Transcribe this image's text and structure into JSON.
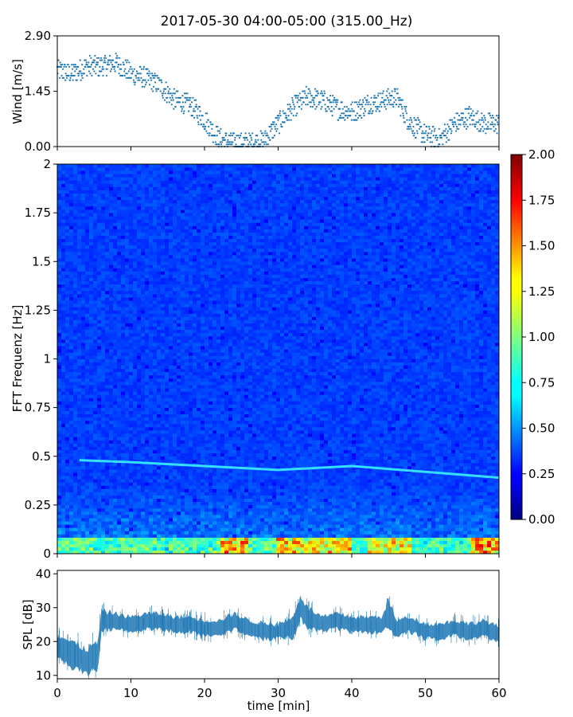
{
  "figure": {
    "title": "2017-05-30 04:00-05:00 (315.00_Hz)"
  },
  "chart_data": [
    {
      "type": "scatter",
      "panel": "wind",
      "ylabel": "Wind [m/s]",
      "xlim": [
        0,
        60
      ],
      "ylim": [
        0,
        2.9
      ],
      "yticks": [
        0,
        1.45,
        2.9
      ],
      "ytick_labels": [
        "0.00",
        "1.45",
        "2.90"
      ],
      "color": "#1f77b4",
      "series": [
        {
          "name": "wind",
          "x": [
            0,
            2,
            4,
            6,
            8,
            10,
            12,
            14,
            16,
            18,
            20,
            22,
            24,
            26,
            28,
            30,
            32,
            34,
            36,
            38,
            40,
            42,
            44,
            46,
            48,
            50,
            52,
            54,
            56,
            58,
            60
          ],
          "y": [
            2.0,
            1.9,
            2.1,
            2.1,
            2.2,
            1.9,
            1.8,
            1.6,
            1.2,
            1.1,
            0.7,
            0.2,
            0.1,
            0.1,
            0.15,
            0.6,
            1.0,
            1.3,
            1.2,
            1.0,
            0.9,
            1.1,
            1.2,
            1.3,
            0.6,
            0.3,
            0.2,
            0.6,
            0.8,
            0.6,
            0.6
          ]
        }
      ]
    },
    {
      "type": "heatmap",
      "panel": "spectrogram",
      "ylabel": "FFT Frequenz [Hz]",
      "xlim": [
        0,
        60
      ],
      "ylim": [
        0,
        2
      ],
      "yticks": [
        0,
        0.25,
        0.5,
        0.75,
        1,
        1.25,
        1.5,
        1.75,
        2
      ],
      "ytick_labels": [
        "0",
        "0.25",
        "0.5",
        "0.75",
        "1",
        "1.25",
        "1.5",
        "1.75",
        "2"
      ],
      "colormap": "jet",
      "colorbar": {
        "vmin": 0,
        "vmax": 2,
        "ticks": [
          0,
          0.25,
          0.5,
          0.75,
          1.0,
          1.25,
          1.5,
          1.75,
          2.0
        ],
        "tick_labels": [
          "0.00",
          "0.25",
          "0.50",
          "0.75",
          "1.00",
          "1.25",
          "1.50",
          "1.75",
          "2.00"
        ]
      },
      "tonal_line": {
        "x": [
          3,
          10,
          20,
          30,
          40,
          50,
          60
        ],
        "freq": [
          0.48,
          0.47,
          0.45,
          0.43,
          0.45,
          0.42,
          0.39
        ]
      },
      "low_freq_bursts": [
        {
          "x0": 22,
          "x1": 26,
          "level": 1.2
        },
        {
          "x0": 30,
          "x1": 40,
          "level": 1.1
        },
        {
          "x0": 42,
          "x1": 48,
          "level": 1.0
        },
        {
          "x0": 56,
          "x1": 60,
          "level": 1.3
        }
      ]
    },
    {
      "type": "area",
      "panel": "spl",
      "xlabel": "time [min]",
      "ylabel": "SPL [dB]",
      "xlim": [
        0,
        60
      ],
      "ylim": [
        9,
        41
      ],
      "xticks": [
        0,
        10,
        20,
        30,
        40,
        50,
        60
      ],
      "xtick_labels": [
        "0",
        "10",
        "20",
        "30",
        "40",
        "50",
        "60"
      ],
      "yticks": [
        10,
        20,
        30,
        40
      ],
      "ytick_labels": [
        "10",
        "20",
        "30",
        "40"
      ],
      "color": "#1f77b4",
      "series": [
        {
          "name": "spl",
          "x": [
            0,
            2,
            4,
            5.5,
            6,
            8,
            10,
            12,
            14,
            16,
            18,
            20,
            22,
            24,
            26,
            28,
            30,
            32,
            33,
            34,
            36,
            38,
            40,
            42,
            44,
            45,
            46,
            48,
            50,
            52,
            54,
            56,
            58,
            60
          ],
          "y": [
            19,
            16,
            14,
            16,
            26,
            26,
            25,
            26,
            26,
            25,
            25,
            24,
            24,
            26,
            24,
            23,
            23,
            24,
            30,
            27,
            25,
            26,
            25,
            25,
            25,
            28,
            24,
            25,
            23,
            23,
            24,
            23,
            24,
            22
          ],
          "spread": [
            4,
            5,
            5,
            5,
            4,
            3,
            3,
            3,
            3,
            3,
            3,
            3,
            3,
            3,
            3,
            3,
            3,
            4,
            5,
            4,
            3,
            3,
            3,
            3,
            3,
            6,
            3,
            3,
            3,
            3,
            3,
            3,
            3,
            3
          ]
        }
      ]
    }
  ]
}
